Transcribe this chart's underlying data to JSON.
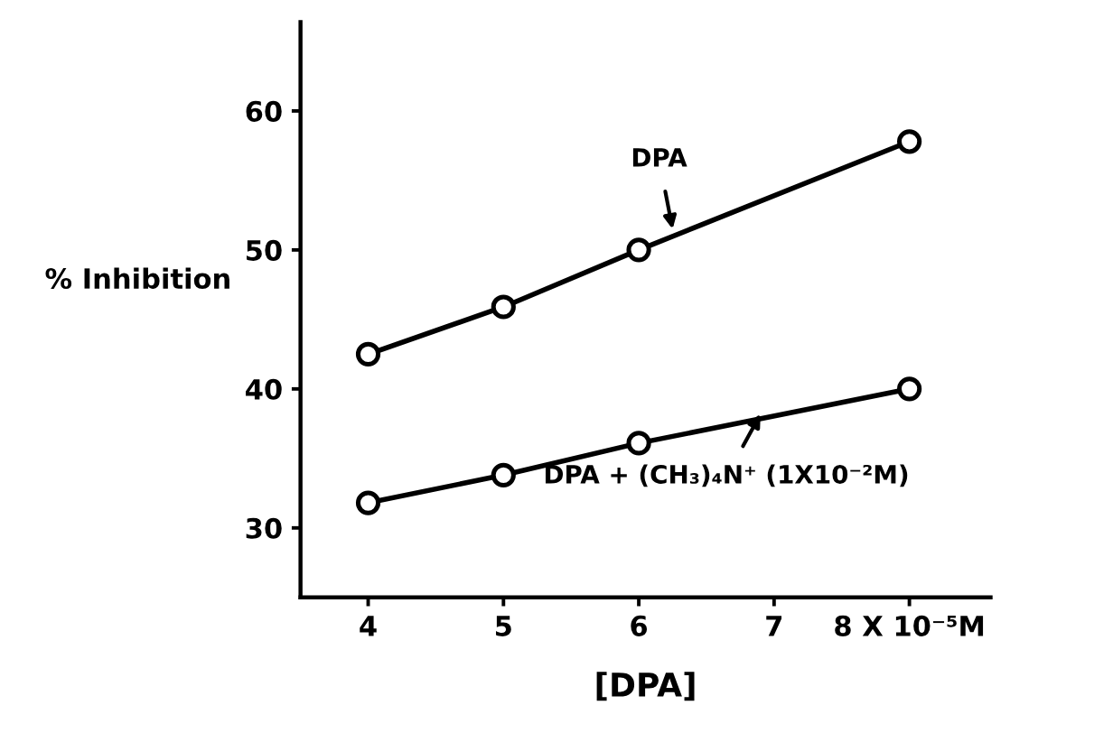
{
  "chart_data": {
    "type": "line",
    "xlabel": "[DPA]",
    "ylabel": "% Inhibition",
    "x": [
      4,
      5,
      6,
      8
    ],
    "series": [
      {
        "color": "#000000",
        "values": [
          42.5,
          45.9,
          50,
          57.8
        ]
      },
      {
        "color": "#000000",
        "values": [
          31.8,
          33.8,
          36.1,
          40
        ]
      }
    ],
    "annotations": [
      {
        "text": "DPA",
        "x": 6.25,
        "y": 51.5
      },
      {
        "text": "DPA + (CH₃)₄N⁺ (1X10⁻²M)",
        "x": 6.9,
        "y": 38.2
      }
    ],
    "xlim": [
      3.5,
      8.6
    ],
    "ylim": [
      25,
      66.4
    ],
    "xticks": [
      4,
      5,
      6,
      7,
      {
        "value": 8,
        "label": "8 X 10⁻⁵M"
      }
    ],
    "yticks": [
      30,
      40,
      50,
      60
    ],
    "marker": "circle",
    "line_style": "solid",
    "grid": false,
    "legend": false
  }
}
